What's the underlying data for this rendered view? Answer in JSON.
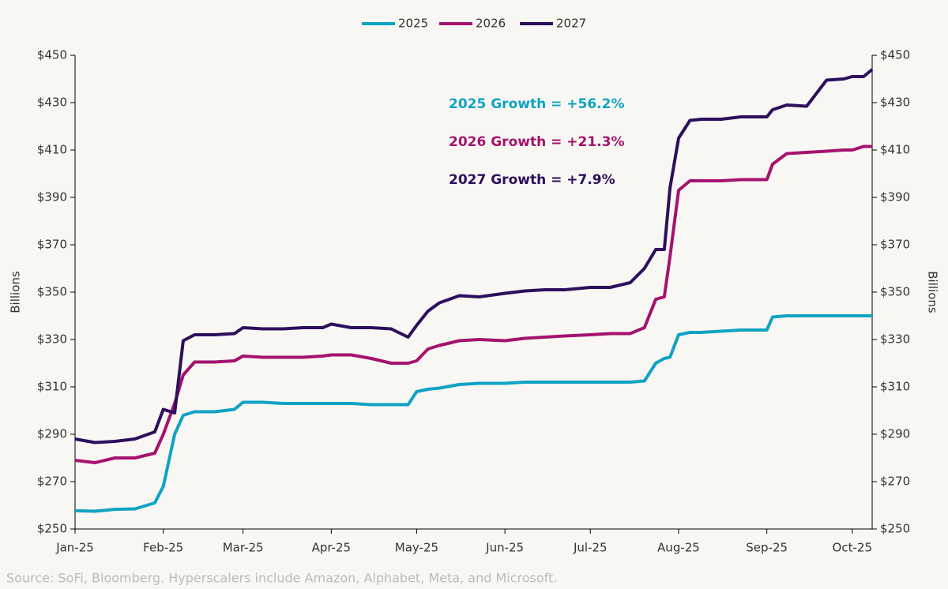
{
  "chart_data": {
    "type": "line",
    "ylabel": "Billions",
    "y2label": "Billions",
    "source": "Source: SoFi, Bloomberg. Hyperscalers include Amazon, Alphabet, Meta, and Microsoft.",
    "x": [
      0,
      7,
      14,
      21,
      28,
      31,
      35,
      38,
      42,
      49,
      56,
      59,
      66,
      73,
      80,
      87,
      90,
      97,
      104,
      111,
      117,
      120,
      124,
      128,
      135,
      142,
      151,
      158,
      165,
      172,
      181,
      188,
      195,
      200,
      204,
      207,
      209,
      212,
      216,
      220,
      227,
      234,
      243,
      245,
      250,
      257,
      264,
      270,
      273,
      277,
      280
    ],
    "xlim": [
      0,
      280
    ],
    "xticks": [
      {
        "value": 0,
        "label": "Jan-25"
      },
      {
        "value": 31,
        "label": "Feb-25"
      },
      {
        "value": 59,
        "label": "Mar-25"
      },
      {
        "value": 90,
        "label": "Apr-25"
      },
      {
        "value": 120,
        "label": "May-25"
      },
      {
        "value": 151,
        "label": "Jun-25"
      },
      {
        "value": 181,
        "label": "Jul-25"
      },
      {
        "value": 212,
        "label": "Aug-25"
      },
      {
        "value": 243,
        "label": "Sep-25"
      },
      {
        "value": 273,
        "label": "Oct-25"
      }
    ],
    "ylim": [
      250,
      450
    ],
    "yticks": [
      {
        "value": 250,
        "label": "$250"
      },
      {
        "value": 270,
        "label": "$270"
      },
      {
        "value": 290,
        "label": "$290"
      },
      {
        "value": 310,
        "label": "$310"
      },
      {
        "value": 330,
        "label": "$330"
      },
      {
        "value": 350,
        "label": "$350"
      },
      {
        "value": 370,
        "label": "$370"
      },
      {
        "value": 390,
        "label": "$390"
      },
      {
        "value": 410,
        "label": "$410"
      },
      {
        "value": 430,
        "label": "$430"
      },
      {
        "value": 450,
        "label": "$450"
      }
    ],
    "y2lim": [
      250,
      450
    ],
    "y2ticks": [
      {
        "value": 250,
        "label": "$250"
      },
      {
        "value": 270,
        "label": "$270"
      },
      {
        "value": 290,
        "label": "$290"
      },
      {
        "value": 310,
        "label": "$310"
      },
      {
        "value": 330,
        "label": "$330"
      },
      {
        "value": 350,
        "label": "$350"
      },
      {
        "value": 370,
        "label": "$370"
      },
      {
        "value": 390,
        "label": "$390"
      },
      {
        "value": 410,
        "label": "$410"
      },
      {
        "value": 430,
        "label": "$430"
      },
      {
        "value": 450,
        "label": "$450"
      }
    ],
    "legend": "top",
    "series": [
      {
        "name": "2025",
        "color": "#0fa3c4",
        "values": [
          257.7,
          257.5,
          258.3,
          258.5,
          261,
          268,
          290,
          298,
          299.5,
          299.5,
          300.5,
          303.5,
          303.5,
          303,
          303,
          303,
          303,
          303,
          302.5,
          302.5,
          302.5,
          308,
          309,
          309.5,
          311,
          311.5,
          311.5,
          312,
          312,
          312,
          312,
          312,
          312,
          312.5,
          320,
          322,
          322.5,
          332,
          333,
          333,
          333.5,
          334,
          334,
          339.5,
          340,
          340,
          340,
          340,
          340,
          340,
          340
        ]
      },
      {
        "name": "2026",
        "color": "#a4136f",
        "values": [
          279,
          278,
          280,
          280,
          282,
          290,
          303,
          315,
          320.5,
          320.5,
          321,
          323,
          322.5,
          322.5,
          322.5,
          323,
          323.5,
          323.5,
          322,
          320,
          320,
          321,
          326,
          327.5,
          329.5,
          330,
          329.5,
          330.5,
          331,
          331.5,
          332,
          332.5,
          332.5,
          335,
          347,
          348,
          365,
          393,
          397,
          397,
          397,
          397.5,
          397.5,
          404,
          408.5,
          409,
          409.5,
          410,
          410,
          411.5,
          411.5
        ]
      },
      {
        "name": "2027",
        "color": "#2e0f5e",
        "values": [
          288,
          286.5,
          287,
          288,
          291,
          300.5,
          299,
          329.5,
          332,
          332,
          332.5,
          335,
          334.5,
          334.5,
          335,
          335,
          336.5,
          335,
          335,
          334.5,
          331,
          336,
          342,
          345.5,
          348.5,
          348,
          349.5,
          350.5,
          351,
          351,
          352,
          352,
          354,
          360,
          368,
          368,
          394,
          415,
          422.5,
          423,
          423,
          424,
          424,
          427,
          429,
          428.5,
          439.5,
          440,
          441,
          441,
          444
        ]
      }
    ],
    "annotations": [
      {
        "text": "2025 Growth = +56.2%",
        "color": "#0fa3c4"
      },
      {
        "text": "2026 Growth = +21.3%",
        "color": "#a4136f"
      },
      {
        "text": "2027 Growth = +7.9%",
        "color": "#2e0f5e"
      }
    ]
  }
}
